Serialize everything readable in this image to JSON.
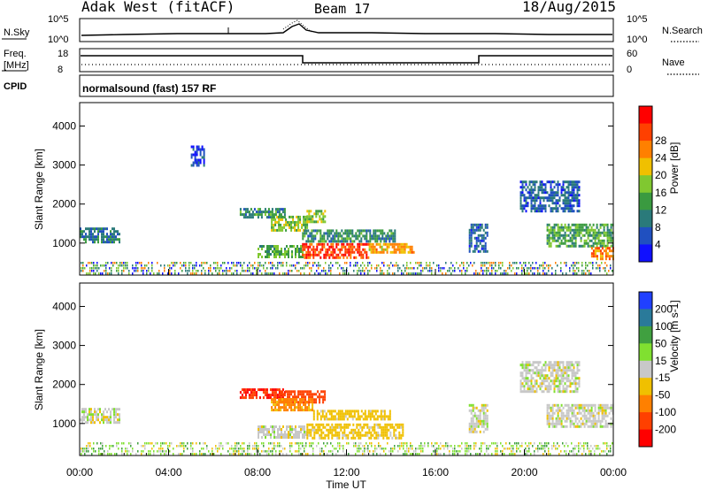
{
  "header": {
    "radar_title": "Adak West (fitACF)",
    "beam": "Beam 17",
    "date": "18/Aug/2015"
  },
  "status_panels": {
    "nsky_label": "N.Sky",
    "nsky_ticks": [
      "10^5",
      "10^0"
    ],
    "nsearch_label": "N.Search",
    "nsearch_ticks": [
      "10^5",
      "10^0"
    ],
    "freq_label_1": "Freq.",
    "freq_label_2": "[MHz]",
    "freq_ticks": [
      "18",
      "8"
    ],
    "nave_label": "Nave",
    "nave_ticks": [
      "60",
      "0"
    ],
    "cpid_label": "CPID",
    "cpid_text": "normalsound (fast) 157 RF"
  },
  "x_axis": {
    "ticks": [
      "00:00",
      "04:00",
      "08:00",
      "12:00",
      "16:00",
      "20:00",
      "00:00"
    ],
    "label": "Time UT"
  },
  "chart_data": [
    {
      "type": "heatmap",
      "variable": "Power",
      "ylabel": "Slant Range [km]",
      "xlabel": "Time UT",
      "xlim_hours": [
        0,
        24
      ],
      "ylim": [
        180,
        4600
      ],
      "yticks": [
        "1000",
        "2000",
        "3000",
        "4000"
      ],
      "colorbar": {
        "label": "Power [dB]",
        "ticks": [
          "4",
          "8",
          "12",
          "16",
          "20",
          "24",
          "28"
        ],
        "range": [
          0,
          30
        ],
        "colors": [
          "#1010ff",
          "#2050c0",
          "#2a7a7a",
          "#3a9a40",
          "#80c830",
          "#f0c000",
          "#ff8000",
          "#ff4000",
          "#ff0000"
        ]
      },
      "echo_regions": [
        {
          "t": [
            0.0,
            1.8
          ],
          "r": [
            1000,
            1400
          ],
          "level": 8
        },
        {
          "t": [
            5.0,
            5.6
          ],
          "r": [
            3000,
            3500
          ],
          "level": 4
        },
        {
          "t": [
            7.2,
            9.2
          ],
          "r": [
            1650,
            1900
          ],
          "level": 10
        },
        {
          "t": [
            8.6,
            10.2
          ],
          "r": [
            1350,
            1700
          ],
          "level": 14
        },
        {
          "t": [
            10.2,
            11.0
          ],
          "r": [
            1550,
            1850
          ],
          "level": 16
        },
        {
          "t": [
            10.0,
            14.2
          ],
          "r": [
            1050,
            1350
          ],
          "level": 10
        },
        {
          "t": [
            8.0,
            10.0
          ],
          "r": [
            650,
            950
          ],
          "level": 12
        },
        {
          "t": [
            10.0,
            13.0
          ],
          "r": [
            650,
            1000
          ],
          "level": 26
        },
        {
          "t": [
            13.0,
            15.0
          ],
          "r": [
            750,
            1000
          ],
          "level": 20
        },
        {
          "t": [
            17.5,
            18.3
          ],
          "r": [
            800,
            1500
          ],
          "level": 6
        },
        {
          "t": [
            19.8,
            22.5
          ],
          "r": [
            1800,
            2600
          ],
          "level": 6
        },
        {
          "t": [
            21.0,
            24.0
          ],
          "r": [
            900,
            1500
          ],
          "level": 12
        },
        {
          "t": [
            23.0,
            24.0
          ],
          "r": [
            600,
            900
          ],
          "level": 22
        }
      ]
    },
    {
      "type": "heatmap",
      "variable": "Velocity",
      "ylabel": "Slant Range [km]",
      "xlabel": "Time UT",
      "xlim_hours": [
        0,
        24
      ],
      "ylim": [
        180,
        4600
      ],
      "yticks": [
        "1000",
        "2000",
        "3000",
        "4000"
      ],
      "colorbar": {
        "label": "Velocity [m s-1]",
        "ticks": [
          "200",
          "100",
          "50",
          "15",
          "-15",
          "-50",
          "-100",
          "-200"
        ],
        "colors": [
          "#2040ff",
          "#2a7a9a",
          "#40a040",
          "#80e030",
          "#c8c8c8",
          "#f0c000",
          "#ff8000",
          "#ff4000",
          "#ff0000"
        ]
      },
      "echo_regions": [
        {
          "t": [
            0.0,
            1.8
          ],
          "r": [
            1000,
            1400
          ],
          "v": 0
        },
        {
          "t": [
            7.2,
            9.2
          ],
          "r": [
            1650,
            1900
          ],
          "v": -200
        },
        {
          "t": [
            9.0,
            11.0
          ],
          "r": [
            1550,
            1850
          ],
          "v": -150
        },
        {
          "t": [
            8.6,
            10.5
          ],
          "r": [
            1350,
            1650
          ],
          "v": -60
        },
        {
          "t": [
            10.5,
            14.0
          ],
          "r": [
            1100,
            1350
          ],
          "v": -30
        },
        {
          "t": [
            8.0,
            10.2
          ],
          "r": [
            650,
            950
          ],
          "v": 0
        },
        {
          "t": [
            10.2,
            14.5
          ],
          "r": [
            650,
            1000
          ],
          "v": -30
        },
        {
          "t": [
            17.5,
            18.3
          ],
          "r": [
            800,
            1500
          ],
          "v": 0
        },
        {
          "t": [
            19.8,
            22.5
          ],
          "r": [
            1800,
            2600
          ],
          "v": 0
        },
        {
          "t": [
            21.0,
            24.0
          ],
          "r": [
            900,
            1500
          ],
          "v": 0
        }
      ]
    }
  ]
}
